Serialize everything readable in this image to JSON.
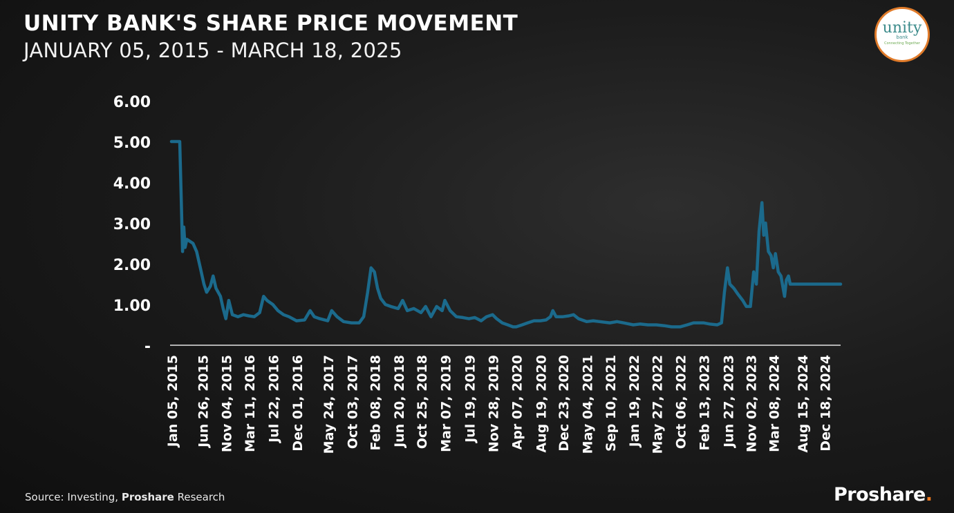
{
  "header": {
    "title": "UNITY BANK'S SHARE PRICE MOVEMENT",
    "subtitle": "JANUARY 05, 2015 - MARCH 18, 2025"
  },
  "logo": {
    "word": "unity",
    "sub": "bank",
    "tagline": "Connecting Together"
  },
  "footer": {
    "source_prefix": "Source: Investing,",
    "source_bold": "Proshare",
    "source_suffix": "Research",
    "brand": "Proshare",
    "brand_dot": "."
  },
  "colors": {
    "line": "#1b6a8c",
    "text": "#ffffff",
    "accent": "#f07b20"
  },
  "chart_data": {
    "type": "line",
    "title": "UNITY BANK'S SHARE PRICE MOVEMENT",
    "subtitle": "JANUARY 05, 2015 - MARCH 18, 2025",
    "xlabel": "",
    "ylabel": "",
    "ylim": [
      0,
      6
    ],
    "yticks": [
      {
        "value": 0,
        "label": "-"
      },
      {
        "value": 1,
        "label": "1.00"
      },
      {
        "value": 2,
        "label": "2.00"
      },
      {
        "value": 3,
        "label": "3.00"
      },
      {
        "value": 4,
        "label": "4.00"
      },
      {
        "value": 5,
        "label": "5.00"
      },
      {
        "value": 6,
        "label": "6.00"
      }
    ],
    "xlim": [
      "2015-01-05",
      "2025-03-18"
    ],
    "xticks": [
      {
        "date": "2015-01-05",
        "label": "Jan 05, 2015"
      },
      {
        "date": "2015-06-26",
        "label": "Jun 26, 2015"
      },
      {
        "date": "2015-11-04",
        "label": "Nov 04, 2015"
      },
      {
        "date": "2016-03-11",
        "label": "Mar 11, 2016"
      },
      {
        "date": "2016-07-22",
        "label": "Jul 22, 2016"
      },
      {
        "date": "2016-12-01",
        "label": "Dec 01, 2016"
      },
      {
        "date": "2017-05-24",
        "label": "May 24, 2017"
      },
      {
        "date": "2017-10-03",
        "label": "Oct 03, 2017"
      },
      {
        "date": "2018-02-08",
        "label": "Feb 08, 2018"
      },
      {
        "date": "2018-06-20",
        "label": "Jun 20, 2018"
      },
      {
        "date": "2018-10-25",
        "label": "Oct 25, 2018"
      },
      {
        "date": "2019-03-07",
        "label": "Mar 07, 2019"
      },
      {
        "date": "2019-07-19",
        "label": "Jul 19, 2019"
      },
      {
        "date": "2019-11-28",
        "label": "Nov 28, 2019"
      },
      {
        "date": "2020-04-07",
        "label": "Apr 07, 2020"
      },
      {
        "date": "2020-08-19",
        "label": "Aug 19, 2020"
      },
      {
        "date": "2020-12-23",
        "label": "Dec 23, 2020"
      },
      {
        "date": "2021-05-04",
        "label": "May 04, 2021"
      },
      {
        "date": "2021-09-10",
        "label": "Sep 10, 2021"
      },
      {
        "date": "2022-01-19",
        "label": "Jan 19, 2022"
      },
      {
        "date": "2022-05-27",
        "label": "May 27, 2022"
      },
      {
        "date": "2022-10-06",
        "label": "Oct 06, 2022"
      },
      {
        "date": "2023-02-13",
        "label": "Feb 13, 2023"
      },
      {
        "date": "2023-06-27",
        "label": "Jun 27, 2023"
      },
      {
        "date": "2023-11-02",
        "label": "Nov 02, 2023"
      },
      {
        "date": "2024-03-08",
        "label": "Mar 08, 2024"
      },
      {
        "date": "2024-08-15",
        "label": "Aug 15, 2024"
      },
      {
        "date": "2024-12-18",
        "label": "Dec 18, 2024"
      }
    ],
    "grid": false,
    "legend": "none",
    "series": [
      {
        "color": "#1b6a8c",
        "points": [
          [
            "2015-01-05",
            5.0
          ],
          [
            "2015-02-20",
            5.0
          ],
          [
            "2015-03-01",
            3.5
          ],
          [
            "2015-03-08",
            2.3
          ],
          [
            "2015-03-15",
            2.9
          ],
          [
            "2015-03-22",
            2.4
          ],
          [
            "2015-04-01",
            2.6
          ],
          [
            "2015-05-05",
            2.5
          ],
          [
            "2015-05-25",
            2.3
          ],
          [
            "2015-06-15",
            1.9
          ],
          [
            "2015-07-05",
            1.5
          ],
          [
            "2015-07-20",
            1.3
          ],
          [
            "2015-08-10",
            1.45
          ],
          [
            "2015-08-25",
            1.7
          ],
          [
            "2015-09-10",
            1.4
          ],
          [
            "2015-10-05",
            1.2
          ],
          [
            "2015-10-20",
            0.9
          ],
          [
            "2015-11-04",
            0.65
          ],
          [
            "2015-11-20",
            1.1
          ],
          [
            "2015-12-10",
            0.75
          ],
          [
            "2016-01-10",
            0.7
          ],
          [
            "2016-02-10",
            0.75
          ],
          [
            "2016-03-11",
            0.72
          ],
          [
            "2016-04-10",
            0.7
          ],
          [
            "2016-05-10",
            0.8
          ],
          [
            "2016-06-01",
            1.2
          ],
          [
            "2016-06-20",
            1.1
          ],
          [
            "2016-07-22",
            1.0
          ],
          [
            "2016-08-20",
            0.85
          ],
          [
            "2016-09-20",
            0.75
          ],
          [
            "2016-10-20",
            0.7
          ],
          [
            "2016-12-01",
            0.6
          ],
          [
            "2017-01-15",
            0.62
          ],
          [
            "2017-02-15",
            0.85
          ],
          [
            "2017-03-10",
            0.7
          ],
          [
            "2017-04-10",
            0.65
          ],
          [
            "2017-05-24",
            0.6
          ],
          [
            "2017-06-15",
            0.85
          ],
          [
            "2017-07-15",
            0.7
          ],
          [
            "2017-08-20",
            0.58
          ],
          [
            "2017-10-03",
            0.55
          ],
          [
            "2017-11-15",
            0.55
          ],
          [
            "2017-12-10",
            0.7
          ],
          [
            "2018-01-01",
            1.3
          ],
          [
            "2018-01-20",
            1.9
          ],
          [
            "2018-02-08",
            1.8
          ],
          [
            "2018-02-25",
            1.4
          ],
          [
            "2018-03-15",
            1.15
          ],
          [
            "2018-04-10",
            1.0
          ],
          [
            "2018-05-10",
            0.95
          ],
          [
            "2018-06-20",
            0.9
          ],
          [
            "2018-07-15",
            1.1
          ],
          [
            "2018-08-10",
            0.85
          ],
          [
            "2018-09-15",
            0.9
          ],
          [
            "2018-10-25",
            0.8
          ],
          [
            "2018-11-20",
            0.95
          ],
          [
            "2018-12-20",
            0.7
          ],
          [
            "2019-01-20",
            0.95
          ],
          [
            "2019-02-20",
            0.85
          ],
          [
            "2019-03-07",
            1.1
          ],
          [
            "2019-04-05",
            0.85
          ],
          [
            "2019-05-10",
            0.7
          ],
          [
            "2019-06-15",
            0.68
          ],
          [
            "2019-07-19",
            0.65
          ],
          [
            "2019-08-20",
            0.68
          ],
          [
            "2019-09-25",
            0.6
          ],
          [
            "2019-10-25",
            0.7
          ],
          [
            "2019-11-28",
            0.75
          ],
          [
            "2019-12-20",
            0.65
          ],
          [
            "2020-01-20",
            0.55
          ],
          [
            "2020-02-20",
            0.5
          ],
          [
            "2020-03-20",
            0.45
          ],
          [
            "2020-04-07",
            0.45
          ],
          [
            "2020-05-10",
            0.5
          ],
          [
            "2020-06-10",
            0.55
          ],
          [
            "2020-07-15",
            0.6
          ],
          [
            "2020-08-19",
            0.6
          ],
          [
            "2020-09-20",
            0.62
          ],
          [
            "2020-10-15",
            0.7
          ],
          [
            "2020-10-28",
            0.85
          ],
          [
            "2020-11-15",
            0.7
          ],
          [
            "2020-12-23",
            0.7
          ],
          [
            "2021-01-25",
            0.72
          ],
          [
            "2021-02-20",
            0.75
          ],
          [
            "2021-03-20",
            0.65
          ],
          [
            "2021-05-04",
            0.58
          ],
          [
            "2021-06-10",
            0.6
          ],
          [
            "2021-07-15",
            0.58
          ],
          [
            "2021-09-10",
            0.55
          ],
          [
            "2021-10-20",
            0.58
          ],
          [
            "2021-11-25",
            0.55
          ],
          [
            "2022-01-19",
            0.5
          ],
          [
            "2022-02-25",
            0.52
          ],
          [
            "2022-04-10",
            0.5
          ],
          [
            "2022-05-27",
            0.5
          ],
          [
            "2022-07-10",
            0.48
          ],
          [
            "2022-08-20",
            0.45
          ],
          [
            "2022-10-06",
            0.45
          ],
          [
            "2022-11-15",
            0.5
          ],
          [
            "2022-12-20",
            0.55
          ],
          [
            "2023-02-13",
            0.55
          ],
          [
            "2023-03-20",
            0.52
          ],
          [
            "2023-05-01",
            0.5
          ],
          [
            "2023-05-25",
            0.55
          ],
          [
            "2023-06-10",
            1.3
          ],
          [
            "2023-06-27",
            1.9
          ],
          [
            "2023-07-10",
            1.5
          ],
          [
            "2023-08-01",
            1.4
          ],
          [
            "2023-08-25",
            1.25
          ],
          [
            "2023-09-20",
            1.1
          ],
          [
            "2023-10-10",
            0.95
          ],
          [
            "2023-11-02",
            0.95
          ],
          [
            "2023-11-20",
            1.8
          ],
          [
            "2023-12-05",
            1.5
          ],
          [
            "2023-12-20",
            2.8
          ],
          [
            "2024-01-05",
            3.5
          ],
          [
            "2024-01-15",
            2.7
          ],
          [
            "2024-01-25",
            3.0
          ],
          [
            "2024-02-10",
            2.3
          ],
          [
            "2024-02-25",
            2.2
          ],
          [
            "2024-03-08",
            1.9
          ],
          [
            "2024-03-20",
            2.25
          ],
          [
            "2024-04-05",
            1.8
          ],
          [
            "2024-04-20",
            1.7
          ],
          [
            "2024-05-10",
            1.2
          ],
          [
            "2024-05-20",
            1.6
          ],
          [
            "2024-06-01",
            1.7
          ],
          [
            "2024-06-10",
            1.5
          ],
          [
            "2024-08-15",
            1.5
          ],
          [
            "2024-12-18",
            1.5
          ],
          [
            "2025-03-18",
            1.5
          ]
        ]
      }
    ]
  }
}
